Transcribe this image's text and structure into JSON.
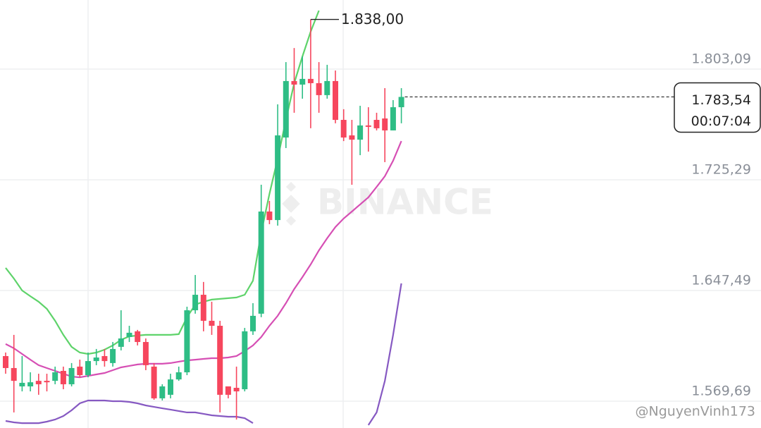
{
  "chart_data": {
    "type": "candlestick",
    "categories": [
      null,
      null,
      null,
      null,
      null,
      null,
      null,
      null,
      null,
      null,
      null,
      null,
      null,
      null,
      null,
      null,
      null,
      null,
      null,
      null,
      null,
      null,
      null,
      null,
      null,
      null,
      null,
      null,
      null,
      null,
      null,
      null,
      null,
      null,
      null,
      null,
      null,
      null,
      null,
      null,
      null,
      null,
      null,
      null,
      null,
      null,
      null,
      null,
      null
    ],
    "open": [
      1601.4,
      1593.0,
      1580.1,
      1580.1,
      1584.0,
      1584.0,
      1584.0,
      1591.0,
      1581.6,
      1594.0,
      1588.0,
      1597.9,
      1601.4,
      1596.5,
      1607.9,
      1614.8,
      1618.8,
      1611.3,
      1594.0,
      1571.7,
      1574.2,
      1585.0,
      1590.0,
      1633.6,
      1644.5,
      1626.2,
      1622.7,
      1580.1,
      1579.1,
      1578.1,
      1618.8,
      1631.2,
      1703.0,
      1697.0,
      1755.0,
      1794.7,
      1792.2,
      1796.2,
      1793.2,
      1784.8,
      1794.7,
      1767.4,
      1756.5,
      1753.5,
      1763.5,
      1767.4,
      1768.4,
      1760.0,
      1776.3
    ],
    "high": [
      1603.9,
      1616.3,
      1601.4,
      1590.0,
      1589.0,
      1589.0,
      1594.0,
      1594.0,
      1596.5,
      1598.9,
      1603.9,
      1606.4,
      1606.4,
      1611.3,
      1633.6,
      1622.7,
      1619.8,
      1613.8,
      1596.5,
      1581.6,
      1589.0,
      1594.0,
      1636.1,
      1658.4,
      1653.5,
      1639.6,
      1626.2,
      1580.1,
      1594.0,
      1621.2,
      1638.6,
      1721.8,
      1710.4,
      1778.3,
      1808.0,
      1817.9,
      1812.0,
      1838,
      1808.0,
      1806.1,
      1802.1,
      1774.9,
      1767.4,
      1777.3,
      1776.3,
      1772.4,
      1789.7,
      1781.3,
      1789.7
    ],
    "low": [
      1589.0,
      1561.8,
      1576.6,
      1576.6,
      1574.2,
      1576.6,
      1581.6,
      1578.1,
      1580.1,
      1586.5,
      1586.5,
      1595.0,
      1594.0,
      1594.0,
      1605.4,
      1611.3,
      1608.9,
      1591.5,
      1570.7,
      1570.2,
      1571.7,
      1584.0,
      1588.0,
      1631.2,
      1618.8,
      1616.3,
      1561.8,
      1571.7,
      1556.8,
      1576.6,
      1616.3,
      1628.7,
      1694.1,
      1693.1,
      1747.6,
      1772.4,
      1782.3,
      1761.5,
      1772.4,
      1782.3,
      1765.0,
      1752.5,
      1721.8,
      1742.6,
      1745.1,
      1760.0,
      1737.7,
      1760.0,
      1765.0
    ],
    "close": [
      1593.0,
      1584.0,
      1582.6,
      1583.0,
      1581.6,
      1583.0,
      1590.0,
      1581.6,
      1593.0,
      1588.0,
      1597.9,
      1600.4,
      1597.9,
      1606.4,
      1613.8,
      1617.8,
      1611.3,
      1595.0,
      1571.7,
      1580.1,
      1585.0,
      1590.0,
      1633.6,
      1644.5,
      1626.2,
      1622.7,
      1574.2,
      1574.2,
      1576.6,
      1618.8,
      1629.7,
      1703.0,
      1697.0,
      1756.5,
      1794.7,
      1792.2,
      1796.2,
      1793.2,
      1784.8,
      1794.7,
      1767.4,
      1755.0,
      1753.5,
      1763.5,
      1762.5,
      1761.5,
      1760.0,
      1776.3,
      1783.54
    ],
    "up_color": "#2ebd85",
    "down_color": "#f6465d",
    "overlays": [
      {
        "color": "#5ed36a",
        "values": [
          1663.4,
          1655.9,
          1647.5,
          1643.5,
          1639.6,
          1634.6,
          1626.2,
          1616.3,
          1607.9,
          1603.9,
          1602.9,
          1603.9,
          1605.9,
          1608.9,
          1612.8,
          1615.3,
          1615.8,
          1616.3,
          1616.3,
          1616.3,
          1616.3,
          1616.8,
          1628.7,
          1637.6,
          1639.6,
          1641.1,
          1641.6,
          1642.1,
          1642.6,
          1644.5,
          1654.4,
          1688.1,
          1715.4,
          1740.2,
          1767.4,
          1793.2,
          1812.0,
          1829.4,
          1844.2,
          null,
          null,
          null,
          null,
          null,
          null,
          null,
          null,
          null,
          null
        ]
      },
      {
        "color": "#d64fb4",
        "values": [
          1609.9,
          1606.9,
          1602.9,
          1598.9,
          1595.0,
          1593.0,
          1591.0,
          1589.0,
          1587.0,
          1586.5,
          1587.5,
          1588.5,
          1589.5,
          1591.5,
          1593.5,
          1594.5,
          1595.5,
          1596.0,
          1596.0,
          1596.0,
          1596.5,
          1597.5,
          1598.4,
          1598.9,
          1599.4,
          1599.9,
          1599.9,
          1600.4,
          1601.4,
          1604.9,
          1608.9,
          1614.8,
          1622.7,
          1629.7,
          1638.6,
          1648.5,
          1656.9,
          1665.8,
          1675.7,
          1684.2,
          1692.1,
          1698.1,
          1703.0,
          1708.0,
          1713.0,
          1720.3,
          1727.8,
          1738.7,
          1752.5
        ]
      },
      {
        "color": "#8659c2",
        "values": [
          1555.8,
          1554.8,
          1554.3,
          1554.3,
          1554.3,
          1555.3,
          1556.8,
          1559.3,
          1563.3,
          1568.2,
          1570.2,
          1570.2,
          1570.2,
          1569.7,
          1569.7,
          1569.2,
          1568.2,
          1566.7,
          1565.7,
          1564.7,
          1563.8,
          1562.8,
          1561.8,
          1561.8,
          1560.8,
          1559.8,
          1559.3,
          1558.8,
          1558.8,
          1557.8,
          1554.3,
          null,
          null,
          null,
          null,
          null,
          null,
          null,
          null,
          null,
          null,
          null,
          null,
          null,
          1552.9,
          1561.8,
          1584.0,
          1616.3,
          1652.5
        ]
      }
    ],
    "ylim": [
      1550.86,
      1851.65
    ],
    "yticks": [
      {
        "value": 1569.69,
        "label": "1.569,69"
      },
      {
        "value": 1647.49,
        "label": "1.647,49"
      },
      {
        "value": 1725.29,
        "label": "1.725,29"
      },
      {
        "value": 1803.09,
        "label": "1.803,09"
      }
    ],
    "grid": true,
    "last_price": {
      "value": 1783.54,
      "label": "1.783,54"
    },
    "countdown": "00:07:04",
    "high_annotation": {
      "value": 1838,
      "label": "1.838,00"
    },
    "watermark": "BINANCE",
    "credit": "@NguyenVinh173"
  }
}
